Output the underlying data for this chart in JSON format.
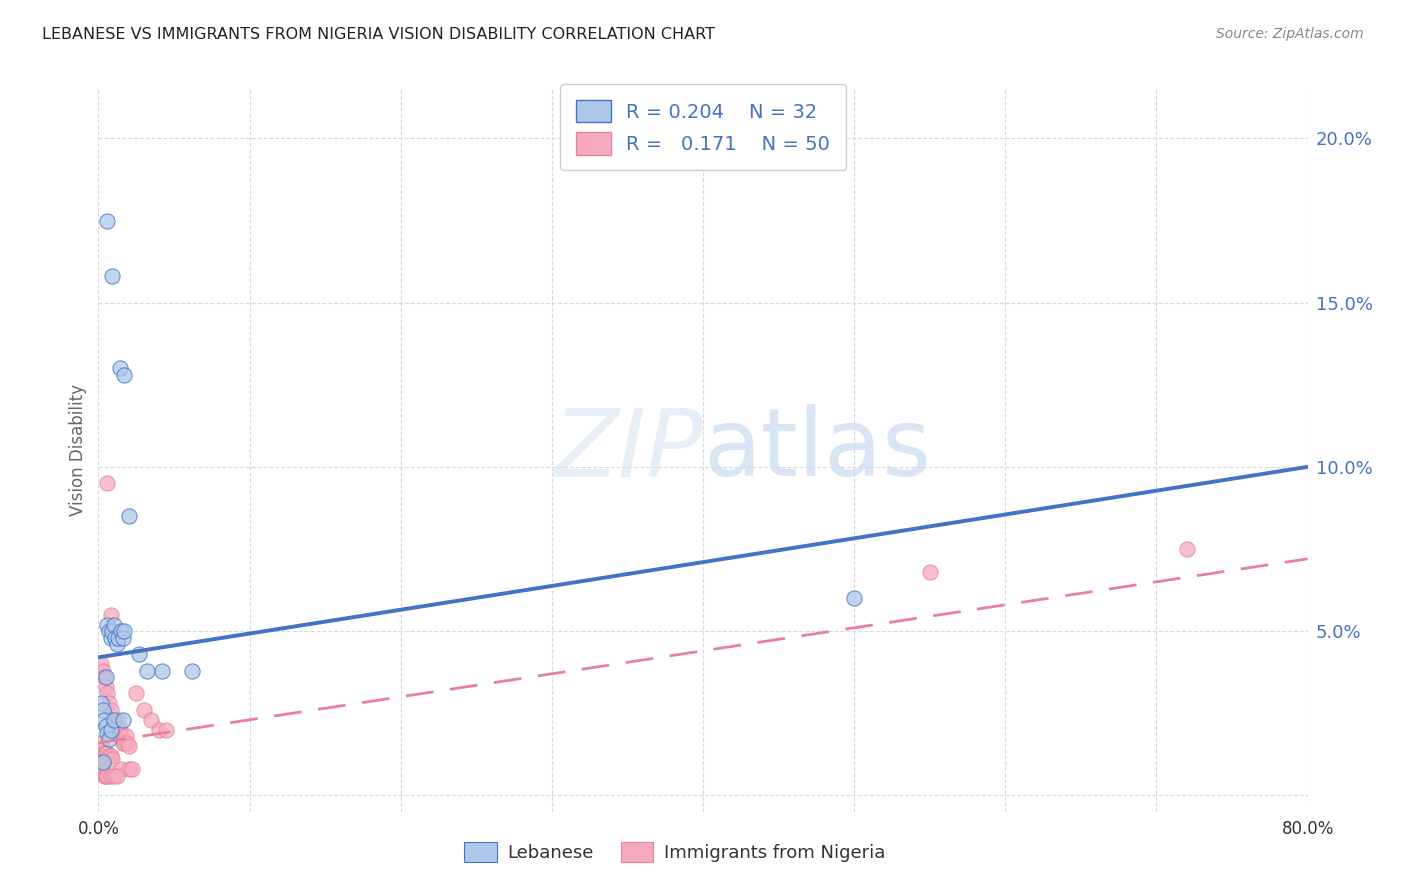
{
  "title": "LEBANESE VS IMMIGRANTS FROM NIGERIA VISION DISABILITY CORRELATION CHART",
  "source": "Source: ZipAtlas.com",
  "ylabel": "Vision Disability",
  "xlim": [
    0,
    0.8
  ],
  "ylim": [
    -0.005,
    0.215
  ],
  "yticks": [
    0.0,
    0.05,
    0.1,
    0.15,
    0.2
  ],
  "ytick_labels": [
    "",
    "5.0%",
    "10.0%",
    "15.0%",
    "20.0%"
  ],
  "xticks": [
    0.0,
    0.1,
    0.2,
    0.3,
    0.4,
    0.5,
    0.6,
    0.7,
    0.8
  ],
  "xtick_labels": [
    "0.0%",
    "",
    "",
    "",
    "",
    "",
    "",
    "",
    "80.0%"
  ],
  "legend_labels": [
    "Lebanese",
    "Immigrants from Nigeria"
  ],
  "blue_color": "#adc8e8",
  "pink_color": "#f5aabe",
  "blue_line_color": "#4472c4",
  "pink_line_color": "#e8809a",
  "r_blue": 0.204,
  "n_blue": 32,
  "r_pink": 0.171,
  "n_pink": 50,
  "blue_scatter": [
    [
      0.006,
      0.175
    ],
    [
      0.009,
      0.158
    ],
    [
      0.014,
      0.13
    ],
    [
      0.017,
      0.128
    ],
    [
      0.02,
      0.085
    ],
    [
      0.005,
      0.036
    ],
    [
      0.006,
      0.052
    ],
    [
      0.007,
      0.05
    ],
    [
      0.008,
      0.048
    ],
    [
      0.009,
      0.05
    ],
    [
      0.01,
      0.052
    ],
    [
      0.011,
      0.048
    ],
    [
      0.012,
      0.046
    ],
    [
      0.013,
      0.048
    ],
    [
      0.015,
      0.05
    ],
    [
      0.016,
      0.048
    ],
    [
      0.017,
      0.05
    ],
    [
      0.002,
      0.028
    ],
    [
      0.003,
      0.026
    ],
    [
      0.004,
      0.023
    ],
    [
      0.005,
      0.021
    ],
    [
      0.006,
      0.019
    ],
    [
      0.007,
      0.017
    ],
    [
      0.008,
      0.02
    ],
    [
      0.01,
      0.023
    ],
    [
      0.016,
      0.023
    ],
    [
      0.027,
      0.043
    ],
    [
      0.032,
      0.038
    ],
    [
      0.042,
      0.038
    ],
    [
      0.062,
      0.038
    ],
    [
      0.003,
      0.01
    ],
    [
      0.5,
      0.06
    ]
  ],
  "pink_scatter": [
    [
      0.006,
      0.095
    ],
    [
      0.008,
      0.055
    ],
    [
      0.002,
      0.04
    ],
    [
      0.003,
      0.038
    ],
    [
      0.004,
      0.036
    ],
    [
      0.005,
      0.033
    ],
    [
      0.006,
      0.031
    ],
    [
      0.007,
      0.028
    ],
    [
      0.008,
      0.026
    ],
    [
      0.009,
      0.023
    ],
    [
      0.01,
      0.02
    ],
    [
      0.011,
      0.02
    ],
    [
      0.012,
      0.021
    ],
    [
      0.013,
      0.023
    ],
    [
      0.014,
      0.02
    ],
    [
      0.015,
      0.018
    ],
    [
      0.016,
      0.016
    ],
    [
      0.017,
      0.016
    ],
    [
      0.018,
      0.018
    ],
    [
      0.019,
      0.016
    ],
    [
      0.02,
      0.015
    ],
    [
      0.002,
      0.016
    ],
    [
      0.003,
      0.014
    ],
    [
      0.004,
      0.013
    ],
    [
      0.005,
      0.013
    ],
    [
      0.006,
      0.013
    ],
    [
      0.007,
      0.012
    ],
    [
      0.008,
      0.012
    ],
    [
      0.009,
      0.011
    ],
    [
      0.001,
      0.01
    ],
    [
      0.002,
      0.009
    ],
    [
      0.025,
      0.031
    ],
    [
      0.03,
      0.026
    ],
    [
      0.035,
      0.023
    ],
    [
      0.04,
      0.02
    ],
    [
      0.045,
      0.02
    ],
    [
      0.015,
      0.008
    ],
    [
      0.02,
      0.008
    ],
    [
      0.022,
      0.008
    ],
    [
      0.001,
      0.008
    ],
    [
      0.002,
      0.007
    ],
    [
      0.003,
      0.007
    ],
    [
      0.004,
      0.006
    ],
    [
      0.005,
      0.006
    ],
    [
      0.006,
      0.006
    ],
    [
      0.008,
      0.006
    ],
    [
      0.01,
      0.006
    ],
    [
      0.012,
      0.006
    ],
    [
      0.55,
      0.068
    ],
    [
      0.72,
      0.075
    ]
  ],
  "blue_trendline": [
    [
      0.0,
      0.042
    ],
    [
      0.8,
      0.1
    ]
  ],
  "pink_trendline": [
    [
      0.0,
      0.016
    ],
    [
      0.8,
      0.072
    ]
  ],
  "watermark_zip": "ZIP",
  "watermark_atlas": "atlas",
  "background_color": "#ffffff",
  "grid_color": "#d8d8d8",
  "axis_label_color": "#4472c4",
  "title_color": "#222222"
}
